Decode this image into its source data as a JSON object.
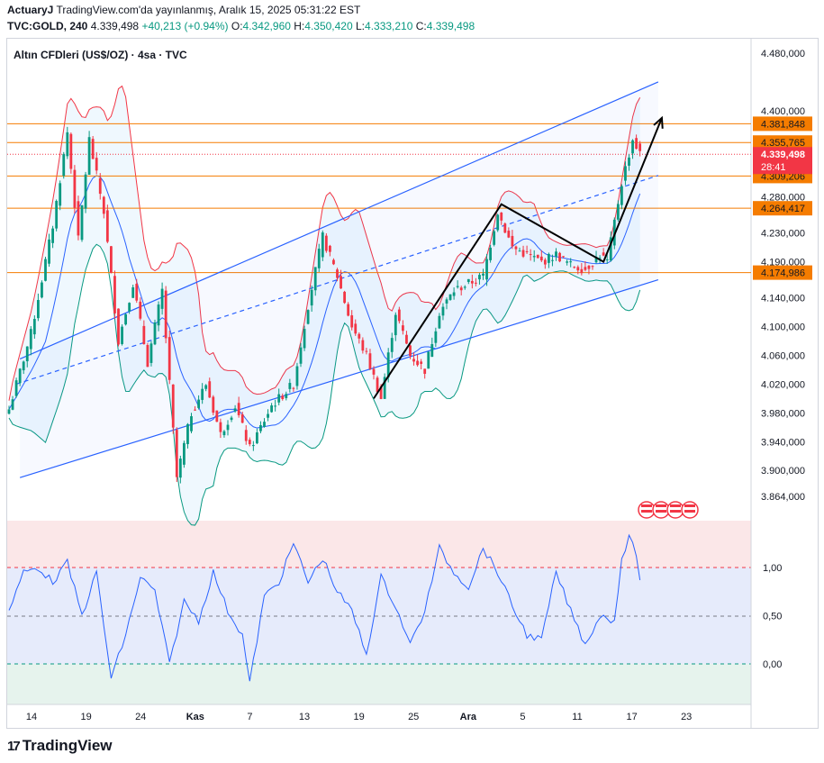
{
  "header": {
    "author": "ActuaryJ",
    "published": "TradingView.com'da yayınlanmış, Aralık 15, 2025 05:31:22 EST",
    "symbol": "TVC:GOLD, 240",
    "last": "4.339,498",
    "change": "+40,213 (+0.94%)",
    "o_label": "O:",
    "o_value": "4.342,960",
    "h_label": "H:",
    "h_value": "4.350,420",
    "l_label": "L:",
    "l_value": "4.333,210",
    "c_label": "C:",
    "c_value": "4.339,498"
  },
  "colors": {
    "up": "#089981",
    "down": "#f23645",
    "channel": "#2962ff",
    "level": "#f57c00",
    "price_tag": "#f23645",
    "osc": "#2962ff"
  },
  "chart_data": {
    "type": "candlestick",
    "title": "Altın CFDleri (US$/OZ) · 4sa · TVC",
    "y_range": [
      3850000,
      4500000
    ],
    "y_ticks": [
      {
        "v": 4480000,
        "label": "4.480,000"
      },
      {
        "v": 4400000,
        "label": "4.400,000"
      },
      {
        "v": 4280000,
        "label": "4.280,000"
      },
      {
        "v": 4230000,
        "label": "4.230,000"
      },
      {
        "v": 4190000,
        "label": "4.190,000"
      },
      {
        "v": 4140000,
        "label": "4.140,000"
      },
      {
        "v": 4100000,
        "label": "4.100,000"
      },
      {
        "v": 4060000,
        "label": "4.060,000"
      },
      {
        "v": 4020000,
        "label": "4.020,000"
      },
      {
        "v": 3980000,
        "label": "3.980,000"
      },
      {
        "v": 3940000,
        "label": "3.940,000"
      },
      {
        "v": 3900000,
        "label": "3.900,000"
      },
      {
        "v": 3864000,
        "label": "3.864,000"
      }
    ],
    "levels": [
      {
        "v": 4381848,
        "label": "4.381,848"
      },
      {
        "v": 4355765,
        "label": "4.355,765"
      },
      {
        "v": 4309206,
        "label": "4.309,206"
      },
      {
        "v": 4264417,
        "label": "4.264,417"
      },
      {
        "v": 4174986,
        "label": "4.174,986"
      }
    ],
    "current_price": {
      "v": 4339498,
      "label": "4.339,498",
      "countdown": "28:41"
    },
    "x_ticks": [
      "14",
      "19",
      "24",
      "Kas",
      "7",
      "13",
      "19",
      "25",
      "Ara",
      "5",
      "11",
      "17",
      "23"
    ],
    "anchors": [
      {
        "i": 0,
        "p": 3985000
      },
      {
        "i": 6,
        "p": 4090000
      },
      {
        "i": 12,
        "p": 4240000
      },
      {
        "i": 16,
        "p": 4370000
      },
      {
        "i": 19,
        "p": 4220000
      },
      {
        "i": 22,
        "p": 4360000
      },
      {
        "i": 26,
        "p": 4260000
      },
      {
        "i": 30,
        "p": 4080000
      },
      {
        "i": 34,
        "p": 4160000
      },
      {
        "i": 38,
        "p": 4050000
      },
      {
        "i": 42,
        "p": 4150000
      },
      {
        "i": 46,
        "p": 3890000
      },
      {
        "i": 50,
        "p": 3980000
      },
      {
        "i": 54,
        "p": 4020000
      },
      {
        "i": 58,
        "p": 3950000
      },
      {
        "i": 62,
        "p": 3990000
      },
      {
        "i": 66,
        "p": 3930000
      },
      {
        "i": 72,
        "p": 3990000
      },
      {
        "i": 78,
        "p": 4020000
      },
      {
        "i": 82,
        "p": 4130000
      },
      {
        "i": 86,
        "p": 4225000
      },
      {
        "i": 90,
        "p": 4170000
      },
      {
        "i": 94,
        "p": 4100000
      },
      {
        "i": 98,
        "p": 4060000
      },
      {
        "i": 102,
        "p": 4000000
      },
      {
        "i": 106,
        "p": 4120000
      },
      {
        "i": 110,
        "p": 4060000
      },
      {
        "i": 114,
        "p": 4040000
      },
      {
        "i": 118,
        "p": 4120000
      },
      {
        "i": 122,
        "p": 4150000
      },
      {
        "i": 126,
        "p": 4160000
      },
      {
        "i": 130,
        "p": 4170000
      },
      {
        "i": 134,
        "p": 4260000
      },
      {
        "i": 138,
        "p": 4210000
      },
      {
        "i": 142,
        "p": 4200000
      },
      {
        "i": 146,
        "p": 4190000
      },
      {
        "i": 150,
        "p": 4200000
      },
      {
        "i": 154,
        "p": 4185000
      },
      {
        "i": 158,
        "p": 4180000
      },
      {
        "i": 162,
        "p": 4200000
      },
      {
        "i": 164,
        "p": 4190000
      },
      {
        "i": 168,
        "p": 4300000
      },
      {
        "i": 171,
        "p": 4360000
      },
      {
        "i": 173,
        "p": 4340000
      }
    ],
    "drawings": {
      "channel_upper": [
        [
          3,
          4055000
        ],
        [
          178,
          4440000
        ]
      ],
      "channel_mid": [
        [
          2,
          4020000
        ],
        [
          178,
          4310000
        ]
      ],
      "channel_lower": [
        [
          3,
          3890000
        ],
        [
          178,
          4165000
        ]
      ],
      "pattern_path": [
        [
          100,
          4000000
        ],
        [
          135,
          4270000
        ],
        [
          163,
          4190000
        ],
        [
          179,
          4390000
        ]
      ]
    },
    "oscillator": {
      "y_range": [
        -0.42,
        1.5
      ],
      "ticks": [
        {
          "v": 1.0,
          "label": "1,00"
        },
        {
          "v": 0.5,
          "label": "0,50"
        },
        {
          "v": 0.0,
          "label": "0,00"
        }
      ],
      "anchors": [
        {
          "i": 0,
          "v": 0.55
        },
        {
          "i": 4,
          "v": 0.95
        },
        {
          "i": 8,
          "v": 1.0
        },
        {
          "i": 12,
          "v": 0.85
        },
        {
          "i": 16,
          "v": 1.05
        },
        {
          "i": 20,
          "v": 0.5
        },
        {
          "i": 24,
          "v": 0.95
        },
        {
          "i": 28,
          "v": -0.15
        },
        {
          "i": 32,
          "v": 0.3
        },
        {
          "i": 36,
          "v": 0.9
        },
        {
          "i": 40,
          "v": 0.75
        },
        {
          "i": 44,
          "v": 0.0
        },
        {
          "i": 48,
          "v": 0.65
        },
        {
          "i": 52,
          "v": 0.45
        },
        {
          "i": 56,
          "v": 0.95
        },
        {
          "i": 60,
          "v": 0.55
        },
        {
          "i": 64,
          "v": 0.3
        },
        {
          "i": 66,
          "v": -0.2
        },
        {
          "i": 70,
          "v": 0.7
        },
        {
          "i": 74,
          "v": 0.85
        },
        {
          "i": 78,
          "v": 1.25
        },
        {
          "i": 82,
          "v": 0.85
        },
        {
          "i": 86,
          "v": 1.1
        },
        {
          "i": 90,
          "v": 0.75
        },
        {
          "i": 94,
          "v": 0.55
        },
        {
          "i": 98,
          "v": 0.1
        },
        {
          "i": 102,
          "v": 0.9
        },
        {
          "i": 106,
          "v": 0.6
        },
        {
          "i": 110,
          "v": 0.2
        },
        {
          "i": 114,
          "v": 0.55
        },
        {
          "i": 118,
          "v": 1.2
        },
        {
          "i": 122,
          "v": 0.95
        },
        {
          "i": 126,
          "v": 0.8
        },
        {
          "i": 130,
          "v": 1.2
        },
        {
          "i": 134,
          "v": 0.95
        },
        {
          "i": 138,
          "v": 0.6
        },
        {
          "i": 142,
          "v": 0.3
        },
        {
          "i": 146,
          "v": 0.25
        },
        {
          "i": 150,
          "v": 0.95
        },
        {
          "i": 154,
          "v": 0.55
        },
        {
          "i": 158,
          "v": 0.2
        },
        {
          "i": 162,
          "v": 0.5
        },
        {
          "i": 166,
          "v": 0.45
        },
        {
          "i": 168,
          "v": 1.1
        },
        {
          "i": 170,
          "v": 1.3
        },
        {
          "i": 172,
          "v": 1.15
        },
        {
          "i": 173,
          "v": 0.85
        }
      ]
    }
  },
  "footer": {
    "brand": "TradingView"
  }
}
